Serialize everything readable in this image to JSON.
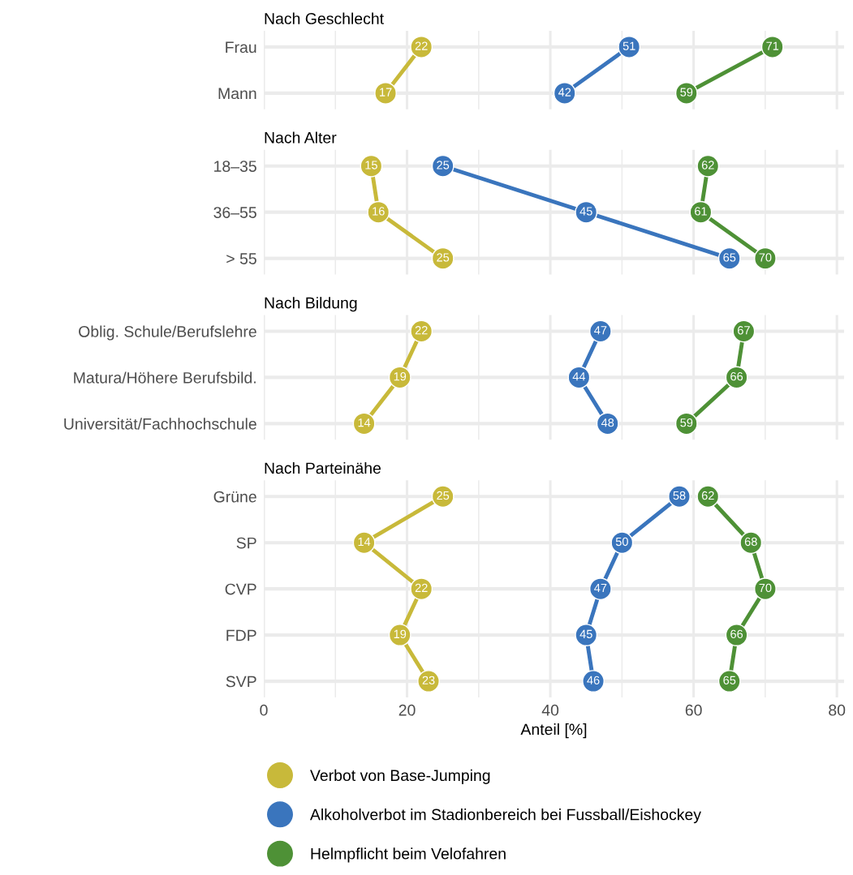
{
  "chart_data": [
    {
      "type": "line",
      "title": "Nach Geschlecht",
      "orientation": "horizontal",
      "categories": [
        "Frau",
        "Mann"
      ],
      "xlim": [
        0,
        81
      ],
      "xticks": [
        0,
        {
          "value": 10,
          "label": null
        },
        20,
        {
          "value": 30,
          "label": null
        },
        40,
        {
          "value": 50,
          "label": null
        },
        60,
        {
          "value": 70,
          "label": null
        },
        80
      ],
      "grid": true,
      "tick_labels": "y",
      "marker": "circle",
      "line_style": "solid",
      "data_labels": true,
      "series": [
        {
          "color": "#c8b93a",
          "values": [
            22,
            17
          ]
        },
        {
          "color": "#3a75bd",
          "values": [
            51,
            42
          ]
        },
        {
          "color": "#4e9136",
          "values": [
            71,
            59
          ]
        }
      ]
    },
    {
      "type": "line",
      "title": "Nach Alter",
      "orientation": "horizontal",
      "categories": [
        "18–35",
        "36–55",
        "> 55"
      ],
      "xlim": [
        0,
        81
      ],
      "xticks": [
        0,
        {
          "value": 10,
          "label": null
        },
        20,
        {
          "value": 30,
          "label": null
        },
        40,
        {
          "value": 50,
          "label": null
        },
        60,
        {
          "value": 70,
          "label": null
        },
        80
      ],
      "grid": true,
      "tick_labels": "y",
      "marker": "circle",
      "line_style": "solid",
      "data_labels": true,
      "series": [
        {
          "color": "#c8b93a",
          "values": [
            15,
            16,
            25
          ]
        },
        {
          "color": "#3a75bd",
          "values": [
            25,
            45,
            65
          ]
        },
        {
          "color": "#4e9136",
          "values": [
            62,
            61,
            70
          ]
        }
      ]
    },
    {
      "type": "line",
      "title": "Nach Bildung",
      "orientation": "horizontal",
      "categories": [
        "Oblig. Schule/Berufslehre",
        "Matura/Höhere Berufsbild.",
        "Universität/Fachhochschule"
      ],
      "xlim": [
        0,
        81
      ],
      "xticks": [
        0,
        {
          "value": 10,
          "label": null
        },
        20,
        {
          "value": 30,
          "label": null
        },
        40,
        {
          "value": 50,
          "label": null
        },
        60,
        {
          "value": 70,
          "label": null
        },
        80
      ],
      "grid": true,
      "tick_labels": "y",
      "marker": "circle",
      "line_style": "solid",
      "data_labels": true,
      "series": [
        {
          "color": "#c8b93a",
          "values": [
            22,
            19,
            14
          ]
        },
        {
          "color": "#3a75bd",
          "values": [
            47,
            44,
            48
          ]
        },
        {
          "color": "#4e9136",
          "values": [
            67,
            66,
            59
          ]
        }
      ]
    },
    {
      "type": "line",
      "title": "Nach Parteinähe",
      "orientation": "horizontal",
      "categories": [
        "Grüne",
        "SP",
        "CVP",
        "FDP",
        "SVP"
      ],
      "xlim": [
        0,
        81
      ],
      "xticks": [
        0,
        {
          "value": 10,
          "label": null
        },
        20,
        {
          "value": 30,
          "label": null
        },
        40,
        {
          "value": 50,
          "label": null
        },
        60,
        {
          "value": 70,
          "label": null
        },
        80
      ],
      "xlabel": "Anteil [%]",
      "grid": true,
      "legend": "bottom",
      "marker": "circle",
      "line_style": "solid",
      "data_labels": true,
      "series": [
        {
          "name": "Verbot von Base-Jumping",
          "color": "#c8b93a",
          "values": [
            25,
            14,
            22,
            19,
            23
          ]
        },
        {
          "name": "Alkoholverbot im Stadionbereich bei Fussball/Eishockey",
          "color": "#3a75bd",
          "values": [
            58,
            50,
            47,
            45,
            46
          ]
        },
        {
          "name": "Helmpflicht beim Velofahren",
          "color": "#4e9136",
          "values": [
            62,
            68,
            70,
            66,
            65
          ]
        }
      ]
    }
  ]
}
